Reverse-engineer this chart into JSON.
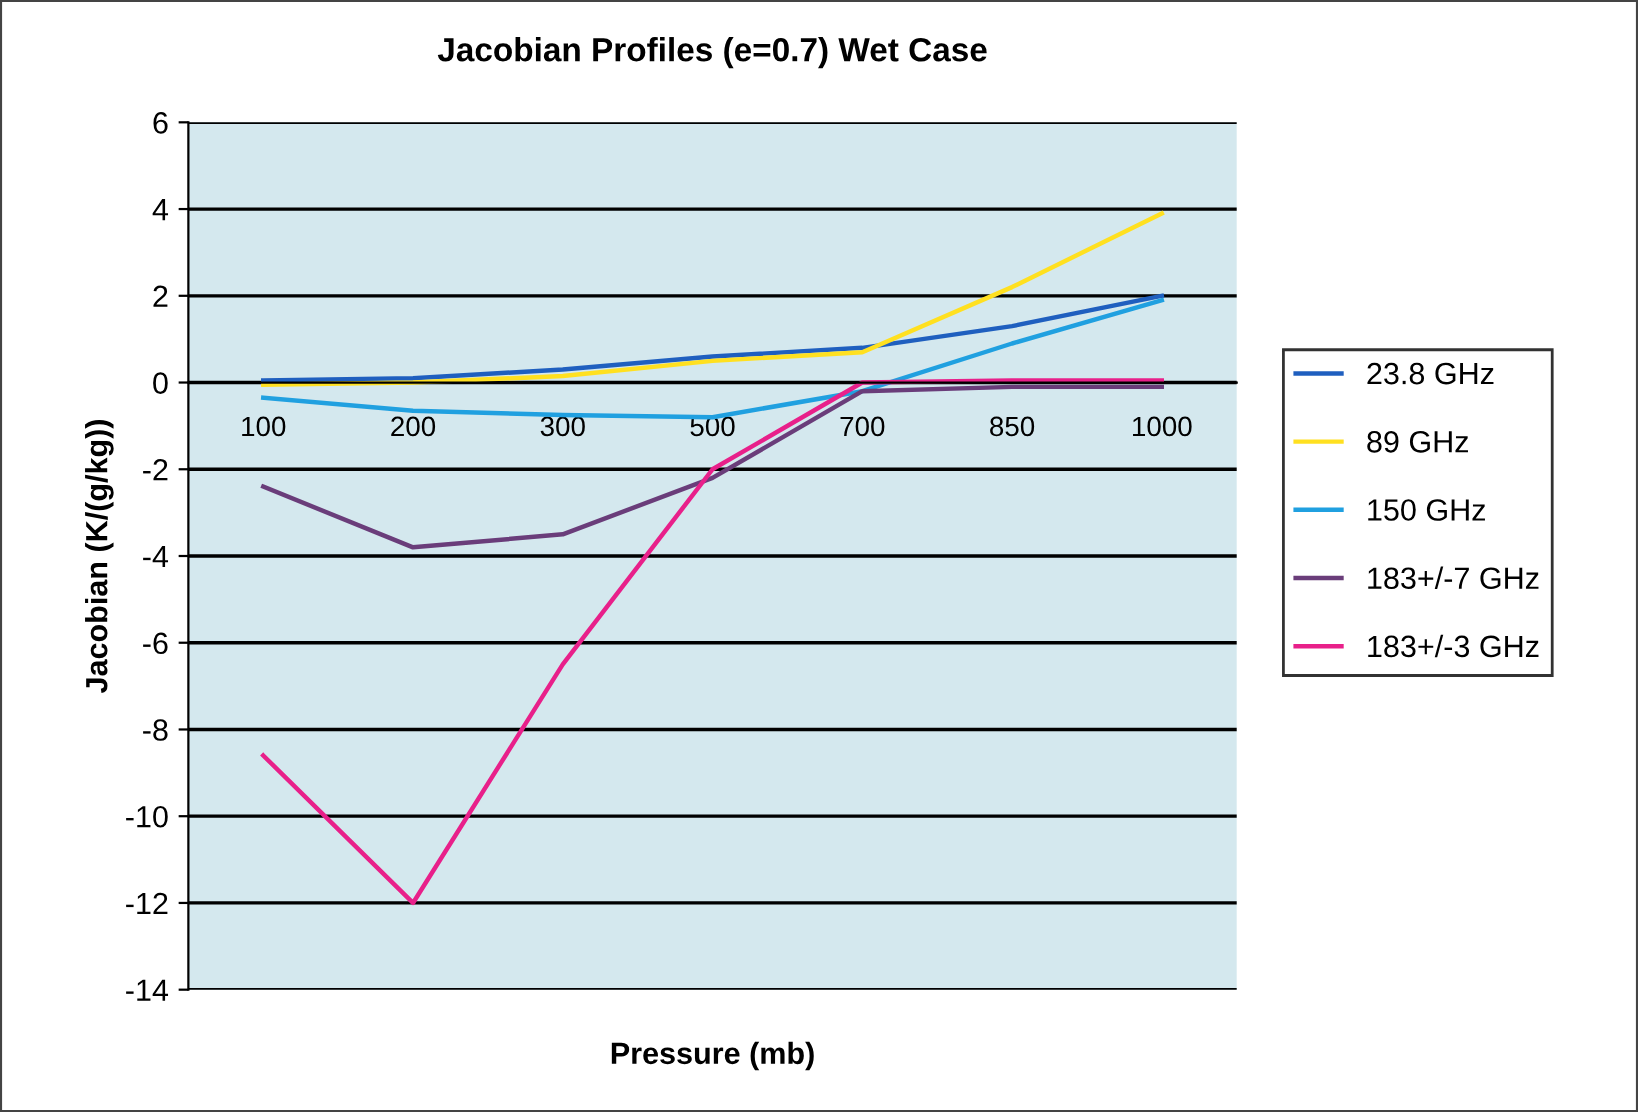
{
  "chart_data": {
    "type": "line",
    "title": "Jacobian Profiles (e=0.7) Wet Case",
    "xlabel": "Pressure (mb)",
    "ylabel": "Jacobian (K/(g/kg))",
    "categories": [
      "100",
      "200",
      "300",
      "500",
      "700",
      "850",
      "1000"
    ],
    "series": [
      {
        "name": "23.8 GHz",
        "color": "#1f5fbf",
        "values": [
          0.05,
          0.1,
          0.3,
          0.6,
          0.8,
          1.3,
          2.0
        ]
      },
      {
        "name": "89 GHz",
        "color": "#ffe020",
        "values": [
          -0.05,
          0.0,
          0.15,
          0.5,
          0.7,
          2.2,
          3.9
        ]
      },
      {
        "name": "150 GHz",
        "color": "#20a0e0",
        "values": [
          -0.35,
          -0.65,
          -0.75,
          -0.8,
          -0.2,
          0.9,
          1.9
        ]
      },
      {
        "name": "183+/-7 GHz",
        "color": "#6a3d7a",
        "values": [
          -2.4,
          -3.8,
          -3.5,
          -2.2,
          -0.2,
          -0.1,
          -0.1
        ]
      },
      {
        "name": "183+/-3 GHz",
        "color": "#e8208a",
        "values": [
          -8.6,
          -12.0,
          -6.5,
          -2.0,
          0.0,
          0.05,
          0.05
        ]
      }
    ],
    "ylim": [
      -14,
      6
    ],
    "yticks": [
      -14,
      -12,
      -10,
      -8,
      -6,
      -4,
      -2,
      0,
      2,
      4,
      6
    ],
    "grid": "y",
    "legend": "right",
    "marker": "none",
    "line_style": "solid"
  }
}
